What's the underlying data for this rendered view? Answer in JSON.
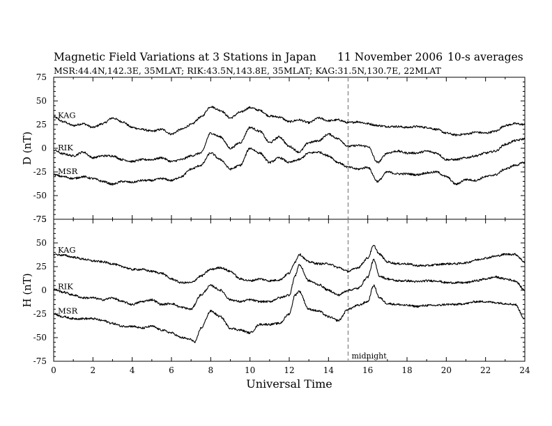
{
  "title": "Magnetic Field Variations at 3 Stations in Japan",
  "date": "11 November 2006",
  "averaging": "10-s averages",
  "subtitle": "MSR:44.4N,142.3E, 35MLAT;  RIK:43.5N,143.8E, 35MLAT;  KAG:31.5N,130.7E, 22MLAT",
  "colors": {
    "axes": "#000000",
    "trace": "#000000",
    "midnight_line": "#999999",
    "background": "#ffffff"
  },
  "chart_data": [
    {
      "type": "line",
      "panel": "top",
      "ylabel": "D (nT)",
      "xlabel": "",
      "xlim": [
        0,
        24
      ],
      "ylim": [
        -75,
        75
      ],
      "yticks": [
        75,
        50,
        25,
        0,
        -25,
        -50,
        -75
      ],
      "xticks": [],
      "midnight_marker": {
        "x": 15,
        "label": ""
      },
      "series": [
        {
          "name": "KAG",
          "x": [
            0,
            0.5,
            1,
            1.5,
            2,
            2.5,
            3,
            3.5,
            4,
            4.5,
            5,
            5.5,
            6,
            6.5,
            7,
            7.5,
            8,
            8.5,
            9,
            9.5,
            10,
            10.5,
            11,
            11.5,
            12,
            12.5,
            13,
            13.5,
            14,
            14.5,
            15,
            15.5,
            16,
            16.5,
            17,
            17.5,
            18,
            18.5,
            19,
            19.5,
            20,
            20.5,
            21,
            21.5,
            22,
            22.5,
            23,
            23.5,
            24
          ],
          "y": [
            33,
            28,
            24,
            26,
            22,
            26,
            32,
            28,
            22,
            20,
            18,
            20,
            15,
            20,
            25,
            33,
            44,
            40,
            32,
            38,
            43,
            40,
            34,
            33,
            28,
            30,
            27,
            32,
            29,
            30,
            27,
            28,
            26,
            24,
            23,
            23,
            22,
            23,
            22,
            20,
            16,
            14,
            15,
            17,
            16,
            18,
            24,
            26,
            25
          ]
        },
        {
          "name": "RIK",
          "x": [
            0,
            0.5,
            1,
            1.5,
            2,
            2.5,
            3,
            3.5,
            4,
            4.5,
            5,
            5.5,
            6,
            6.5,
            7,
            7.5,
            8,
            8.5,
            9,
            9.5,
            10,
            10.5,
            11,
            11.5,
            12,
            12.5,
            13,
            13.5,
            14,
            14.5,
            15,
            15.5,
            16,
            16.5,
            17,
            17.5,
            18,
            18.5,
            19,
            19.5,
            20,
            20.5,
            21,
            21.5,
            22,
            22.5,
            23,
            23.5,
            24
          ],
          "y": [
            -2,
            -6,
            -8,
            -4,
            -10,
            -8,
            -8,
            -12,
            -14,
            -12,
            -12,
            -10,
            -14,
            -12,
            -8,
            -5,
            16,
            12,
            0,
            6,
            22,
            18,
            6,
            12,
            2,
            -4,
            6,
            8,
            15,
            10,
            2,
            3,
            2,
            -15,
            -5,
            -3,
            -5,
            -5,
            -3,
            -5,
            -12,
            -12,
            -10,
            -8,
            -5,
            -3,
            4,
            8,
            10
          ]
        },
        {
          "name": "MSR",
          "x": [
            0,
            0.5,
            1,
            1.5,
            2,
            2.5,
            3,
            3.5,
            4,
            4.5,
            5,
            5.5,
            6,
            6.5,
            7,
            7.5,
            8,
            8.5,
            9,
            9.5,
            10,
            10.5,
            11,
            11.5,
            12,
            12.5,
            13,
            13.5,
            14,
            14.5,
            15,
            15.5,
            16,
            16.5,
            17,
            17.5,
            18,
            18.5,
            19,
            19.5,
            20,
            20.5,
            21,
            21.5,
            22,
            22.5,
            23,
            23.5,
            24
          ],
          "y": [
            -28,
            -30,
            -32,
            -30,
            -32,
            -35,
            -38,
            -35,
            -36,
            -34,
            -34,
            -32,
            -34,
            -30,
            -22,
            -18,
            -5,
            -12,
            -22,
            -18,
            0,
            -5,
            -15,
            -10,
            -15,
            -12,
            -5,
            -4,
            -8,
            -15,
            -20,
            -22,
            -20,
            -35,
            -25,
            -27,
            -27,
            -28,
            -26,
            -25,
            -30,
            -38,
            -33,
            -34,
            -30,
            -28,
            -22,
            -18,
            -15
          ]
        }
      ]
    },
    {
      "type": "line",
      "panel": "bottom",
      "ylabel": "H (nT)",
      "xlabel": "Universal Time",
      "xlim": [
        0,
        24
      ],
      "ylim": [
        -75,
        75
      ],
      "yticks": [
        75,
        50,
        25,
        0,
        -25,
        -50,
        -75
      ],
      "xticks": [
        0,
        2,
        4,
        6,
        8,
        10,
        12,
        14,
        16,
        18,
        20,
        22,
        24
      ],
      "midnight_marker": {
        "x": 15,
        "label": "midnight"
      },
      "series": [
        {
          "name": "KAG",
          "x": [
            0,
            0.5,
            1,
            1.5,
            2,
            2.5,
            3,
            3.5,
            4,
            4.5,
            5,
            5.5,
            6,
            6.5,
            7,
            7.5,
            8,
            8.5,
            9,
            9.5,
            10,
            10.5,
            11,
            11.5,
            12,
            12.3,
            12.5,
            13,
            13.5,
            14,
            14.5,
            15,
            15.5,
            16,
            16.3,
            16.6,
            17,
            17.5,
            18,
            18.5,
            19,
            19.5,
            20,
            20.5,
            21,
            21.5,
            22,
            22.5,
            23,
            23.5,
            24
          ],
          "y": [
            38,
            37,
            35,
            33,
            31,
            30,
            28,
            25,
            22,
            22,
            20,
            18,
            12,
            8,
            8,
            15,
            22,
            24,
            20,
            12,
            10,
            12,
            10,
            11,
            18,
            30,
            38,
            30,
            28,
            28,
            24,
            20,
            24,
            34,
            47,
            38,
            30,
            28,
            28,
            26,
            26,
            27,
            28,
            28,
            29,
            32,
            34,
            36,
            38,
            38,
            30
          ]
        },
        {
          "name": "RIK",
          "x": [
            0,
            0.5,
            1,
            1.5,
            2,
            2.5,
            3,
            3.5,
            4,
            4.5,
            5,
            5.5,
            6,
            6.5,
            7,
            7.5,
            8,
            8.5,
            9,
            9.5,
            10,
            10.5,
            11,
            11.5,
            12,
            12.3,
            12.5,
            13,
            13.5,
            14,
            14.5,
            15,
            15.5,
            16,
            16.3,
            16.6,
            17,
            17.5,
            18,
            18.5,
            19,
            19.5,
            20,
            20.5,
            21,
            21.5,
            22,
            22.5,
            23,
            23.5,
            24
          ],
          "y": [
            1,
            -2,
            -5,
            -8,
            -8,
            -10,
            -8,
            -12,
            -15,
            -12,
            -10,
            -15,
            -14,
            -18,
            -20,
            -5,
            5,
            0,
            -10,
            -12,
            -10,
            -12,
            -12,
            -8,
            -5,
            15,
            27,
            10,
            6,
            0,
            -5,
            0,
            2,
            14,
            32,
            15,
            12,
            10,
            10,
            9,
            10,
            10,
            8,
            8,
            8,
            10,
            12,
            14,
            12,
            10,
            0
          ]
        },
        {
          "name": "MSR",
          "x": [
            0,
            0.5,
            1,
            1.5,
            2,
            2.5,
            3,
            3.5,
            4,
            4.5,
            5,
            5.5,
            6,
            6.5,
            7,
            7.2,
            7.5,
            8,
            8.5,
            9,
            9.5,
            10,
            10.5,
            11,
            11.5,
            12,
            12.3,
            12.5,
            13,
            13.5,
            14,
            14.5,
            15,
            15.5,
            16,
            16.3,
            16.6,
            17,
            17.5,
            18,
            18.5,
            19,
            19.5,
            20,
            20.5,
            21,
            21.5,
            22,
            22.5,
            23,
            23.5,
            24
          ],
          "y": [
            -25,
            -28,
            -30,
            -30,
            -30,
            -32,
            -35,
            -38,
            -38,
            -40,
            -38,
            -42,
            -45,
            -50,
            -52,
            -55,
            -40,
            -22,
            -28,
            -40,
            -42,
            -45,
            -36,
            -36,
            -35,
            -25,
            -5,
            -1,
            -20,
            -22,
            -28,
            -32,
            -20,
            -16,
            -12,
            5,
            -8,
            -14,
            -15,
            -16,
            -17,
            -16,
            -16,
            -15,
            -15,
            -14,
            -12,
            -12,
            -13,
            -14,
            -15,
            -30
          ]
        }
      ]
    }
  ]
}
